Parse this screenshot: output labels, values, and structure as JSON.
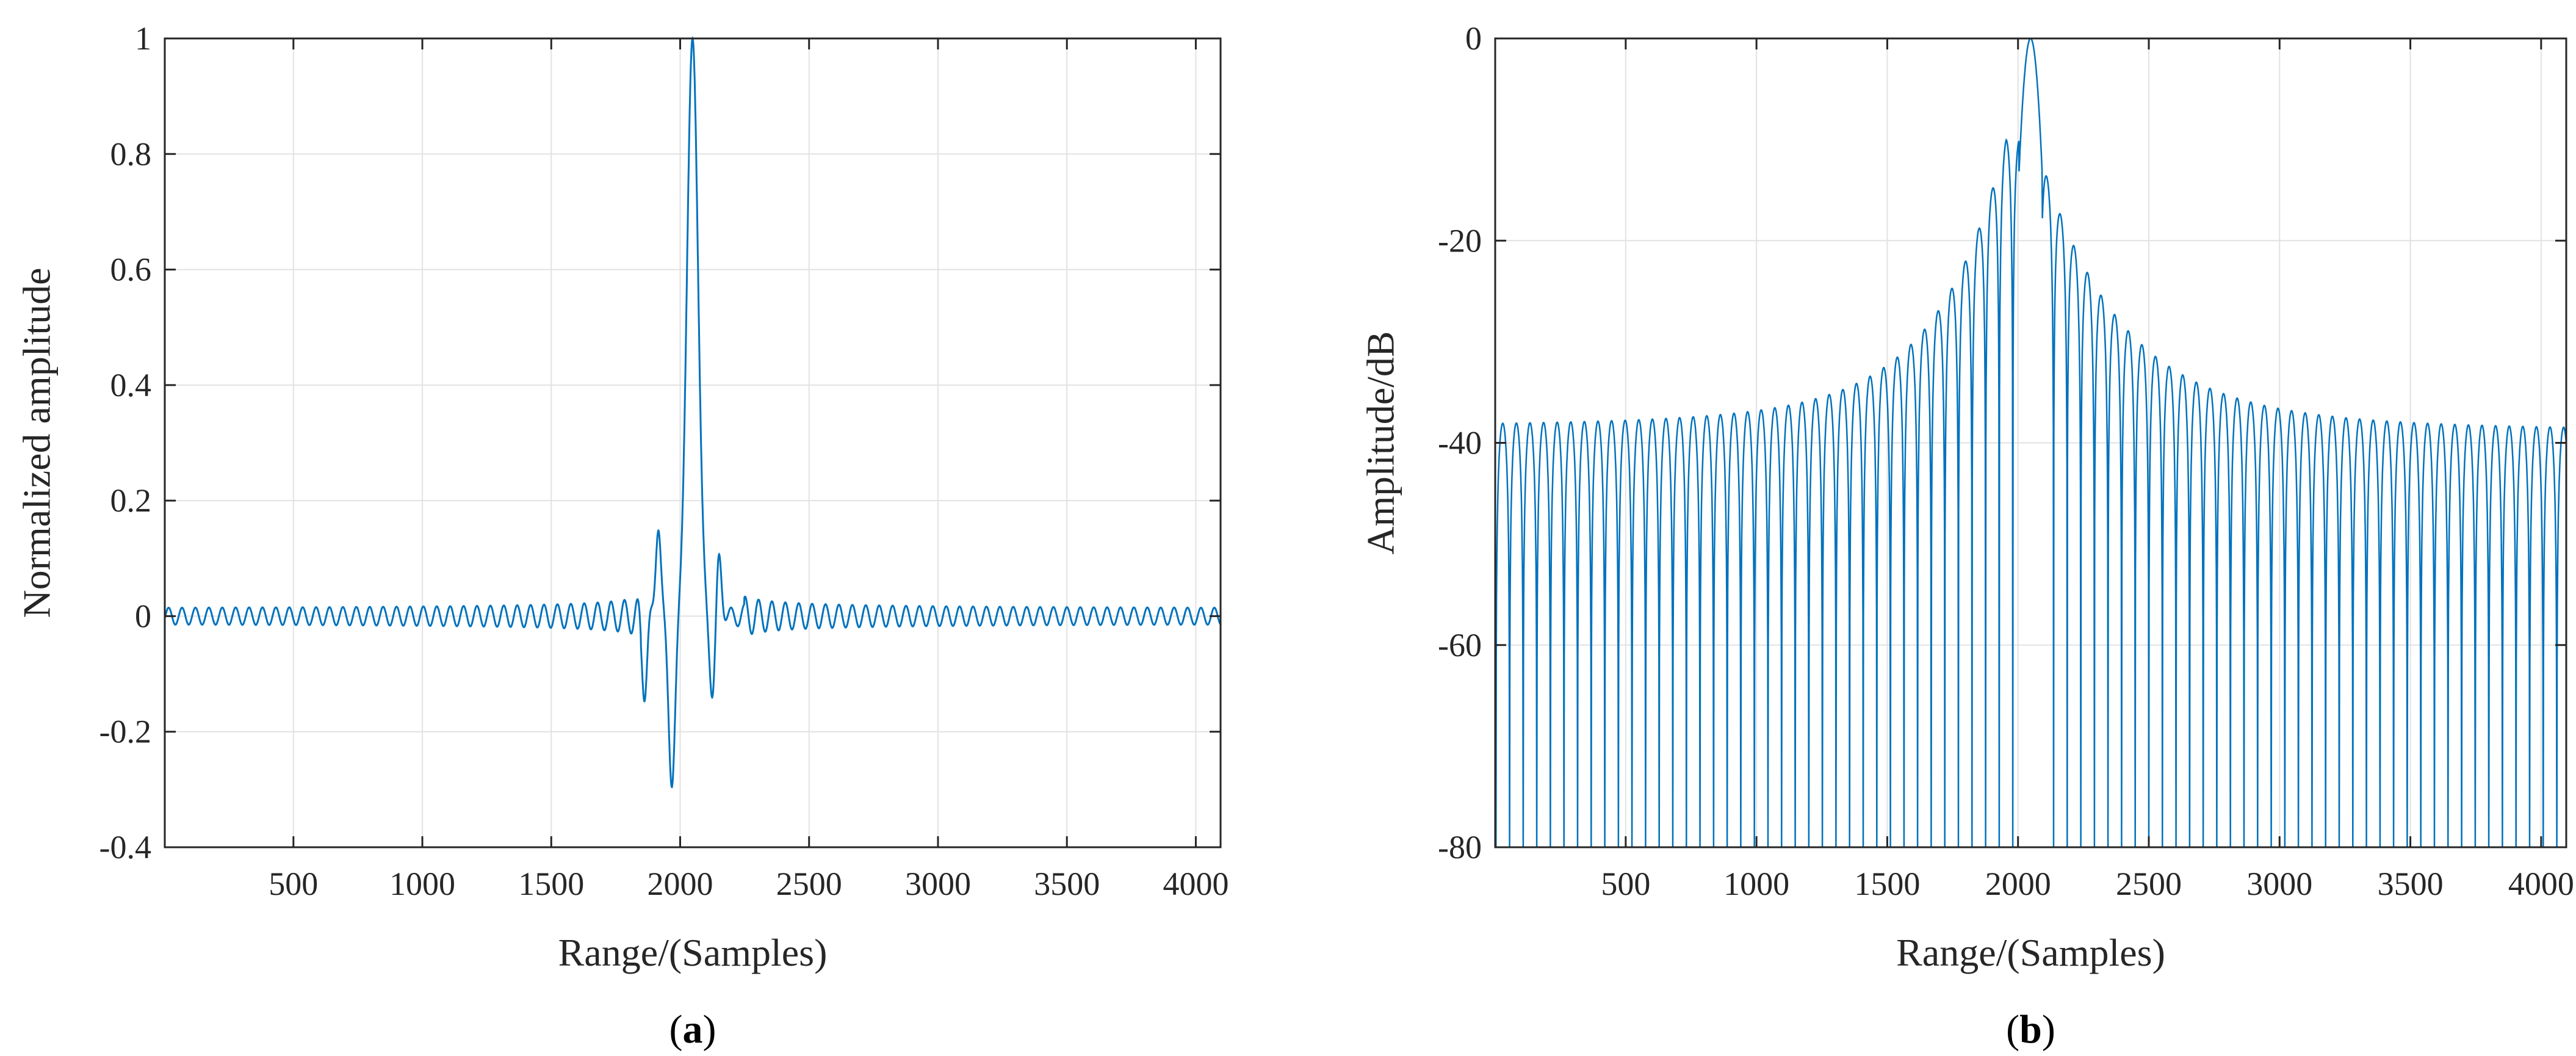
{
  "chart_data": [
    {
      "type": "line",
      "panel_label": "a",
      "xlabel": "Range/(Samples)",
      "ylabel": "Normalized amplitude",
      "xlim": [
        1,
        4096
      ],
      "ylim": [
        -0.4,
        1
      ],
      "xticks": [
        500,
        1000,
        1500,
        2000,
        2500,
        3000,
        3500,
        4000
      ],
      "xtick_labels": [
        "500",
        "1000",
        "1500",
        "2000",
        "2500",
        "3000",
        "3500",
        "4000"
      ],
      "yticks": [
        -0.4,
        -0.2,
        0,
        0.2,
        0.4,
        0.6,
        0.8,
        1
      ],
      "ytick_labels": [
        "-0.4",
        "-0.2",
        "0",
        "0.2",
        "0.4",
        "0.6",
        "0.8",
        "1"
      ],
      "grid": true,
      "series": [
        {
          "name": "normalized amplitude",
          "color": "#0072BD",
          "peak_sample": 2048,
          "peak_value": 1.0,
          "main_lobe_spacing_samples": 55,
          "ripple_period_samples": 52,
          "samples": [
            {
              "x": 1,
              "y": 0.0
            },
            {
              "x": 1700,
              "y": -0.04
            },
            {
              "x": 1815,
              "y": 0.08
            },
            {
              "x": 1862,
              "y": -0.13
            },
            {
              "x": 1915,
              "y": 0.16
            },
            {
              "x": 1968,
              "y": -0.29
            },
            {
              "x": 2048,
              "y": 1.0
            },
            {
              "x": 2125,
              "y": -0.14
            },
            {
              "x": 2150,
              "y": 0.11
            },
            {
              "x": 2250,
              "y": 0.06
            },
            {
              "x": 2500,
              "y": 0.03
            },
            {
              "x": 4096,
              "y": 0.0
            }
          ]
        }
      ]
    },
    {
      "type": "line",
      "panel_label": "b",
      "xlabel": "Range/(Samples)",
      "ylabel": "Amplitude/dB",
      "xlim": [
        1,
        4096
      ],
      "ylim": [
        -80,
        0
      ],
      "xticks": [
        500,
        1000,
        1500,
        2000,
        2500,
        3000,
        3500,
        4000
      ],
      "xtick_labels": [
        "500",
        "1000",
        "1500",
        "2000",
        "2500",
        "3000",
        "3500",
        "4000"
      ],
      "yticks": [
        -80,
        -60,
        -40,
        -20,
        0
      ],
      "ytick_labels": [
        "-80",
        "-60",
        "-40",
        "-20",
        "0"
      ],
      "grid": true,
      "series": [
        {
          "name": "amplitude dB",
          "color": "#0072BD",
          "peak_sample": 2048,
          "peak_value": 0,
          "sidelobe_spacing_samples": 52,
          "samples": [
            {
              "x": 1,
              "y": -40
            },
            {
              "x": 50,
              "y": -38.5
            },
            {
              "x": 1000,
              "y": -35
            },
            {
              "x": 1500,
              "y": -30
            },
            {
              "x": 1800,
              "y": -24
            },
            {
              "x": 1915,
              "y": -16
            },
            {
              "x": 1968,
              "y": -10.6
            },
            {
              "x": 2048,
              "y": 0
            },
            {
              "x": 2125,
              "y": -17
            },
            {
              "x": 2250,
              "y": -24
            },
            {
              "x": 2500,
              "y": -29.5
            },
            {
              "x": 3000,
              "y": -35
            },
            {
              "x": 4096,
              "y": -38.5
            }
          ]
        }
      ]
    }
  ]
}
